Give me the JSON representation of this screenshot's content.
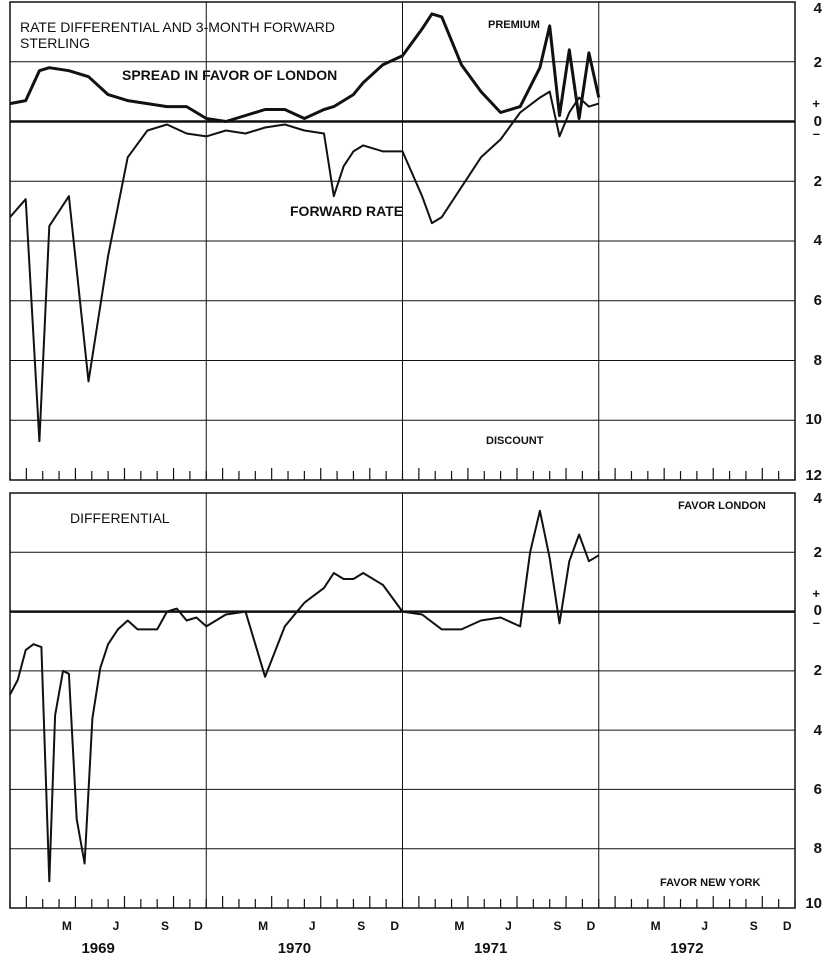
{
  "chart_data": [
    {
      "type": "line",
      "title": "RATE DIFFERENTIAL AND 3-MONTH FORWARD",
      "subtitle": "STERLING",
      "ylim": [
        -12,
        4
      ],
      "y_ticks": [
        "4",
        "2",
        "+",
        "0",
        "–",
        "2",
        "4",
        "6",
        "8",
        "10",
        "12"
      ],
      "annotations": {
        "top": "PREMIUM",
        "bottom": "DISCOUNT",
        "spread": "SPREAD IN FAVOR OF LONDON",
        "forward": "FORWARD RATE"
      },
      "x": [
        1969.0,
        1969.08,
        1969.15,
        1969.2,
        1969.3,
        1969.4,
        1969.5,
        1969.6,
        1969.7,
        1969.8,
        1969.9,
        1970.0,
        1970.1,
        1970.2,
        1970.3,
        1970.4,
        1970.5,
        1970.6,
        1970.65,
        1970.7,
        1970.75,
        1970.8,
        1970.9,
        1971.0,
        1971.1,
        1971.15,
        1971.2,
        1971.3,
        1971.4,
        1971.5,
        1971.6,
        1971.7,
        1971.75,
        1971.8,
        1971.85,
        1971.9,
        1971.95,
        1972.0
      ],
      "series": [
        {
          "name": "SPREAD IN FAVOR OF LONDON",
          "values": [
            0.6,
            0.7,
            1.7,
            1.8,
            1.7,
            1.5,
            0.9,
            0.7,
            0.6,
            0.5,
            0.5,
            0.1,
            0.0,
            0.2,
            0.4,
            0.4,
            0.1,
            0.4,
            0.5,
            0.7,
            0.9,
            1.3,
            1.9,
            2.2,
            3.1,
            3.6,
            3.5,
            1.9,
            1.0,
            0.3,
            0.5,
            1.8,
            3.2,
            0.2,
            2.4,
            0.1,
            2.3,
            0.8
          ]
        },
        {
          "name": "FORWARD RATE",
          "values": [
            -3.2,
            -2.6,
            -10.7,
            -3.5,
            -2.5,
            -8.7,
            -4.5,
            -1.2,
            -0.3,
            -0.1,
            -0.4,
            -0.5,
            -0.3,
            -0.4,
            -0.2,
            -0.1,
            -0.3,
            -0.4,
            -2.5,
            -1.5,
            -1.0,
            -0.8,
            -1.0,
            -1.0,
            -2.5,
            -3.4,
            -3.2,
            -2.2,
            -1.2,
            -0.6,
            0.3,
            0.8,
            1.0,
            -0.5,
            0.3,
            0.8,
            0.5,
            0.6
          ]
        }
      ]
    },
    {
      "type": "line",
      "title": "DIFFERENTIAL",
      "ylim": [
        -10,
        4
      ],
      "y_ticks": [
        "4",
        "2",
        "+",
        "0",
        "–",
        "2",
        "4",
        "6",
        "8",
        "10"
      ],
      "annotations": {
        "top": "FAVOR LONDON",
        "bottom": "FAVOR NEW YORK"
      },
      "x": [
        1969.0,
        1969.04,
        1969.08,
        1969.12,
        1969.16,
        1969.2,
        1969.23,
        1969.27,
        1969.3,
        1969.34,
        1969.38,
        1969.42,
        1969.46,
        1969.5,
        1969.55,
        1969.6,
        1969.65,
        1969.7,
        1969.75,
        1969.8,
        1969.85,
        1969.9,
        1969.95,
        1970.0,
        1970.1,
        1970.2,
        1970.3,
        1970.4,
        1970.5,
        1970.6,
        1970.65,
        1970.7,
        1970.75,
        1970.8,
        1970.9,
        1971.0,
        1971.1,
        1971.2,
        1971.3,
        1971.4,
        1971.5,
        1971.6,
        1971.65,
        1971.7,
        1971.75,
        1971.8,
        1971.85,
        1971.9,
        1971.95,
        1972.0
      ],
      "series": [
        {
          "name": "DIFFERENTIAL",
          "values": [
            -2.8,
            -2.3,
            -1.3,
            -1.1,
            -1.2,
            -9.1,
            -3.5,
            -2.0,
            -2.1,
            -7.0,
            -8.5,
            -3.6,
            -1.9,
            -1.1,
            -0.6,
            -0.3,
            -0.6,
            -0.6,
            -0.6,
            0.0,
            0.1,
            -0.3,
            -0.2,
            -0.5,
            -0.1,
            0.0,
            -2.2,
            -0.5,
            0.3,
            0.8,
            1.3,
            1.1,
            1.1,
            1.3,
            0.9,
            0.0,
            -0.1,
            -0.6,
            -0.6,
            -0.3,
            -0.2,
            -0.5,
            2.0,
            3.4,
            1.8,
            -0.4,
            1.7,
            2.6,
            1.7,
            1.9
          ]
        }
      ]
    }
  ],
  "x_axis": {
    "month_labels": [
      "M",
      "J",
      "S",
      "D",
      "M",
      "J",
      "S",
      "D",
      "M",
      "J",
      "S",
      "D",
      "M",
      "J",
      "S",
      "D"
    ],
    "year_labels": [
      "1969",
      "1970",
      "1971",
      "1972"
    ]
  },
  "colors": {
    "line": "#111111",
    "background": "#ffffff"
  }
}
